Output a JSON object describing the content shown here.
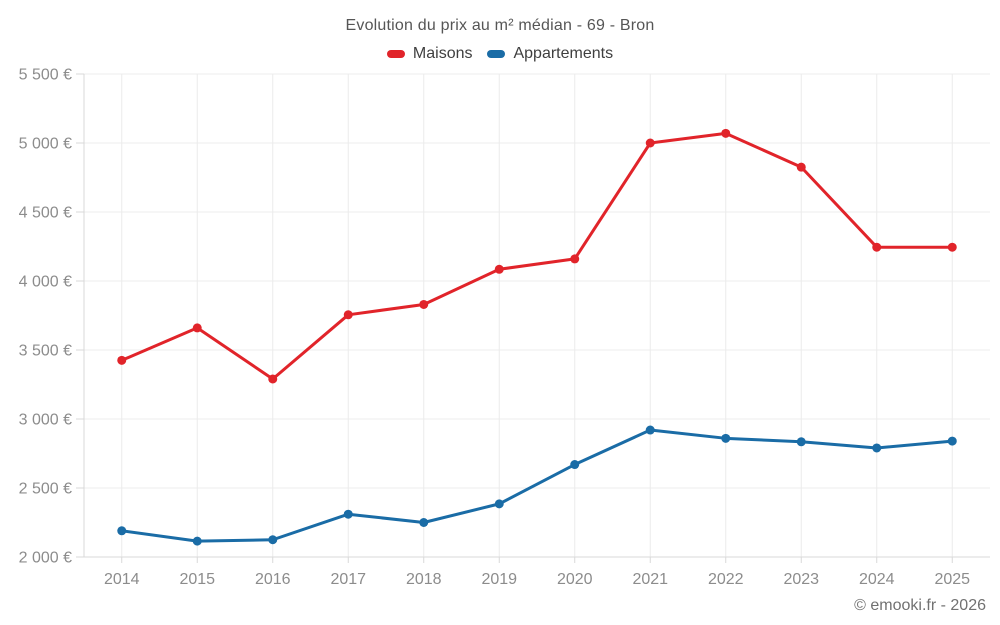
{
  "header": {
    "title": "Evolution du prix au m² médian - 69 - Bron"
  },
  "legend": {
    "items": [
      {
        "label": "Maisons",
        "color": "#e1242a"
      },
      {
        "label": "Appartements",
        "color": "#1a6ca6"
      }
    ]
  },
  "chart_data": {
    "type": "line",
    "title": "Evolution du prix au m² médian - 69 - Bron",
    "xlabel": "",
    "ylabel": "",
    "categories": [
      "2014",
      "2015",
      "2016",
      "2017",
      "2018",
      "2019",
      "2020",
      "2021",
      "2022",
      "2023",
      "2024",
      "2025"
    ],
    "series": [
      {
        "name": "Maisons",
        "color": "#e1242a",
        "values": [
          3425,
          3660,
          3290,
          3755,
          3830,
          4085,
          4160,
          5000,
          5070,
          4825,
          4245,
          4245
        ]
      },
      {
        "name": "Appartements",
        "color": "#1a6ca6",
        "values": [
          2190,
          2115,
          2125,
          2310,
          2250,
          2385,
          2670,
          2920,
          2860,
          2835,
          2790,
          2840
        ]
      }
    ],
    "ylim": [
      2000,
      5500
    ],
    "ytick_step": 500,
    "ytick_labels": [
      "2 000 €",
      "2 500 €",
      "3 000 €",
      "3 500 €",
      "4 000 €",
      "4 500 €",
      "5 000 €",
      "5 500 €"
    ],
    "grid": true,
    "legend_position": "top"
  },
  "footer": {
    "credit": "© emooki.fr - 2026"
  },
  "colors": {
    "maisons": "#e1242a",
    "appartements": "#1a6ca6",
    "grid": "#ececec",
    "axis": "#d9d9d9",
    "tick_label": "#8c8c8c",
    "title_text": "#565656",
    "legend_text": "#3f3f3f",
    "footer_text": "#717171",
    "background": "#ffffff"
  }
}
